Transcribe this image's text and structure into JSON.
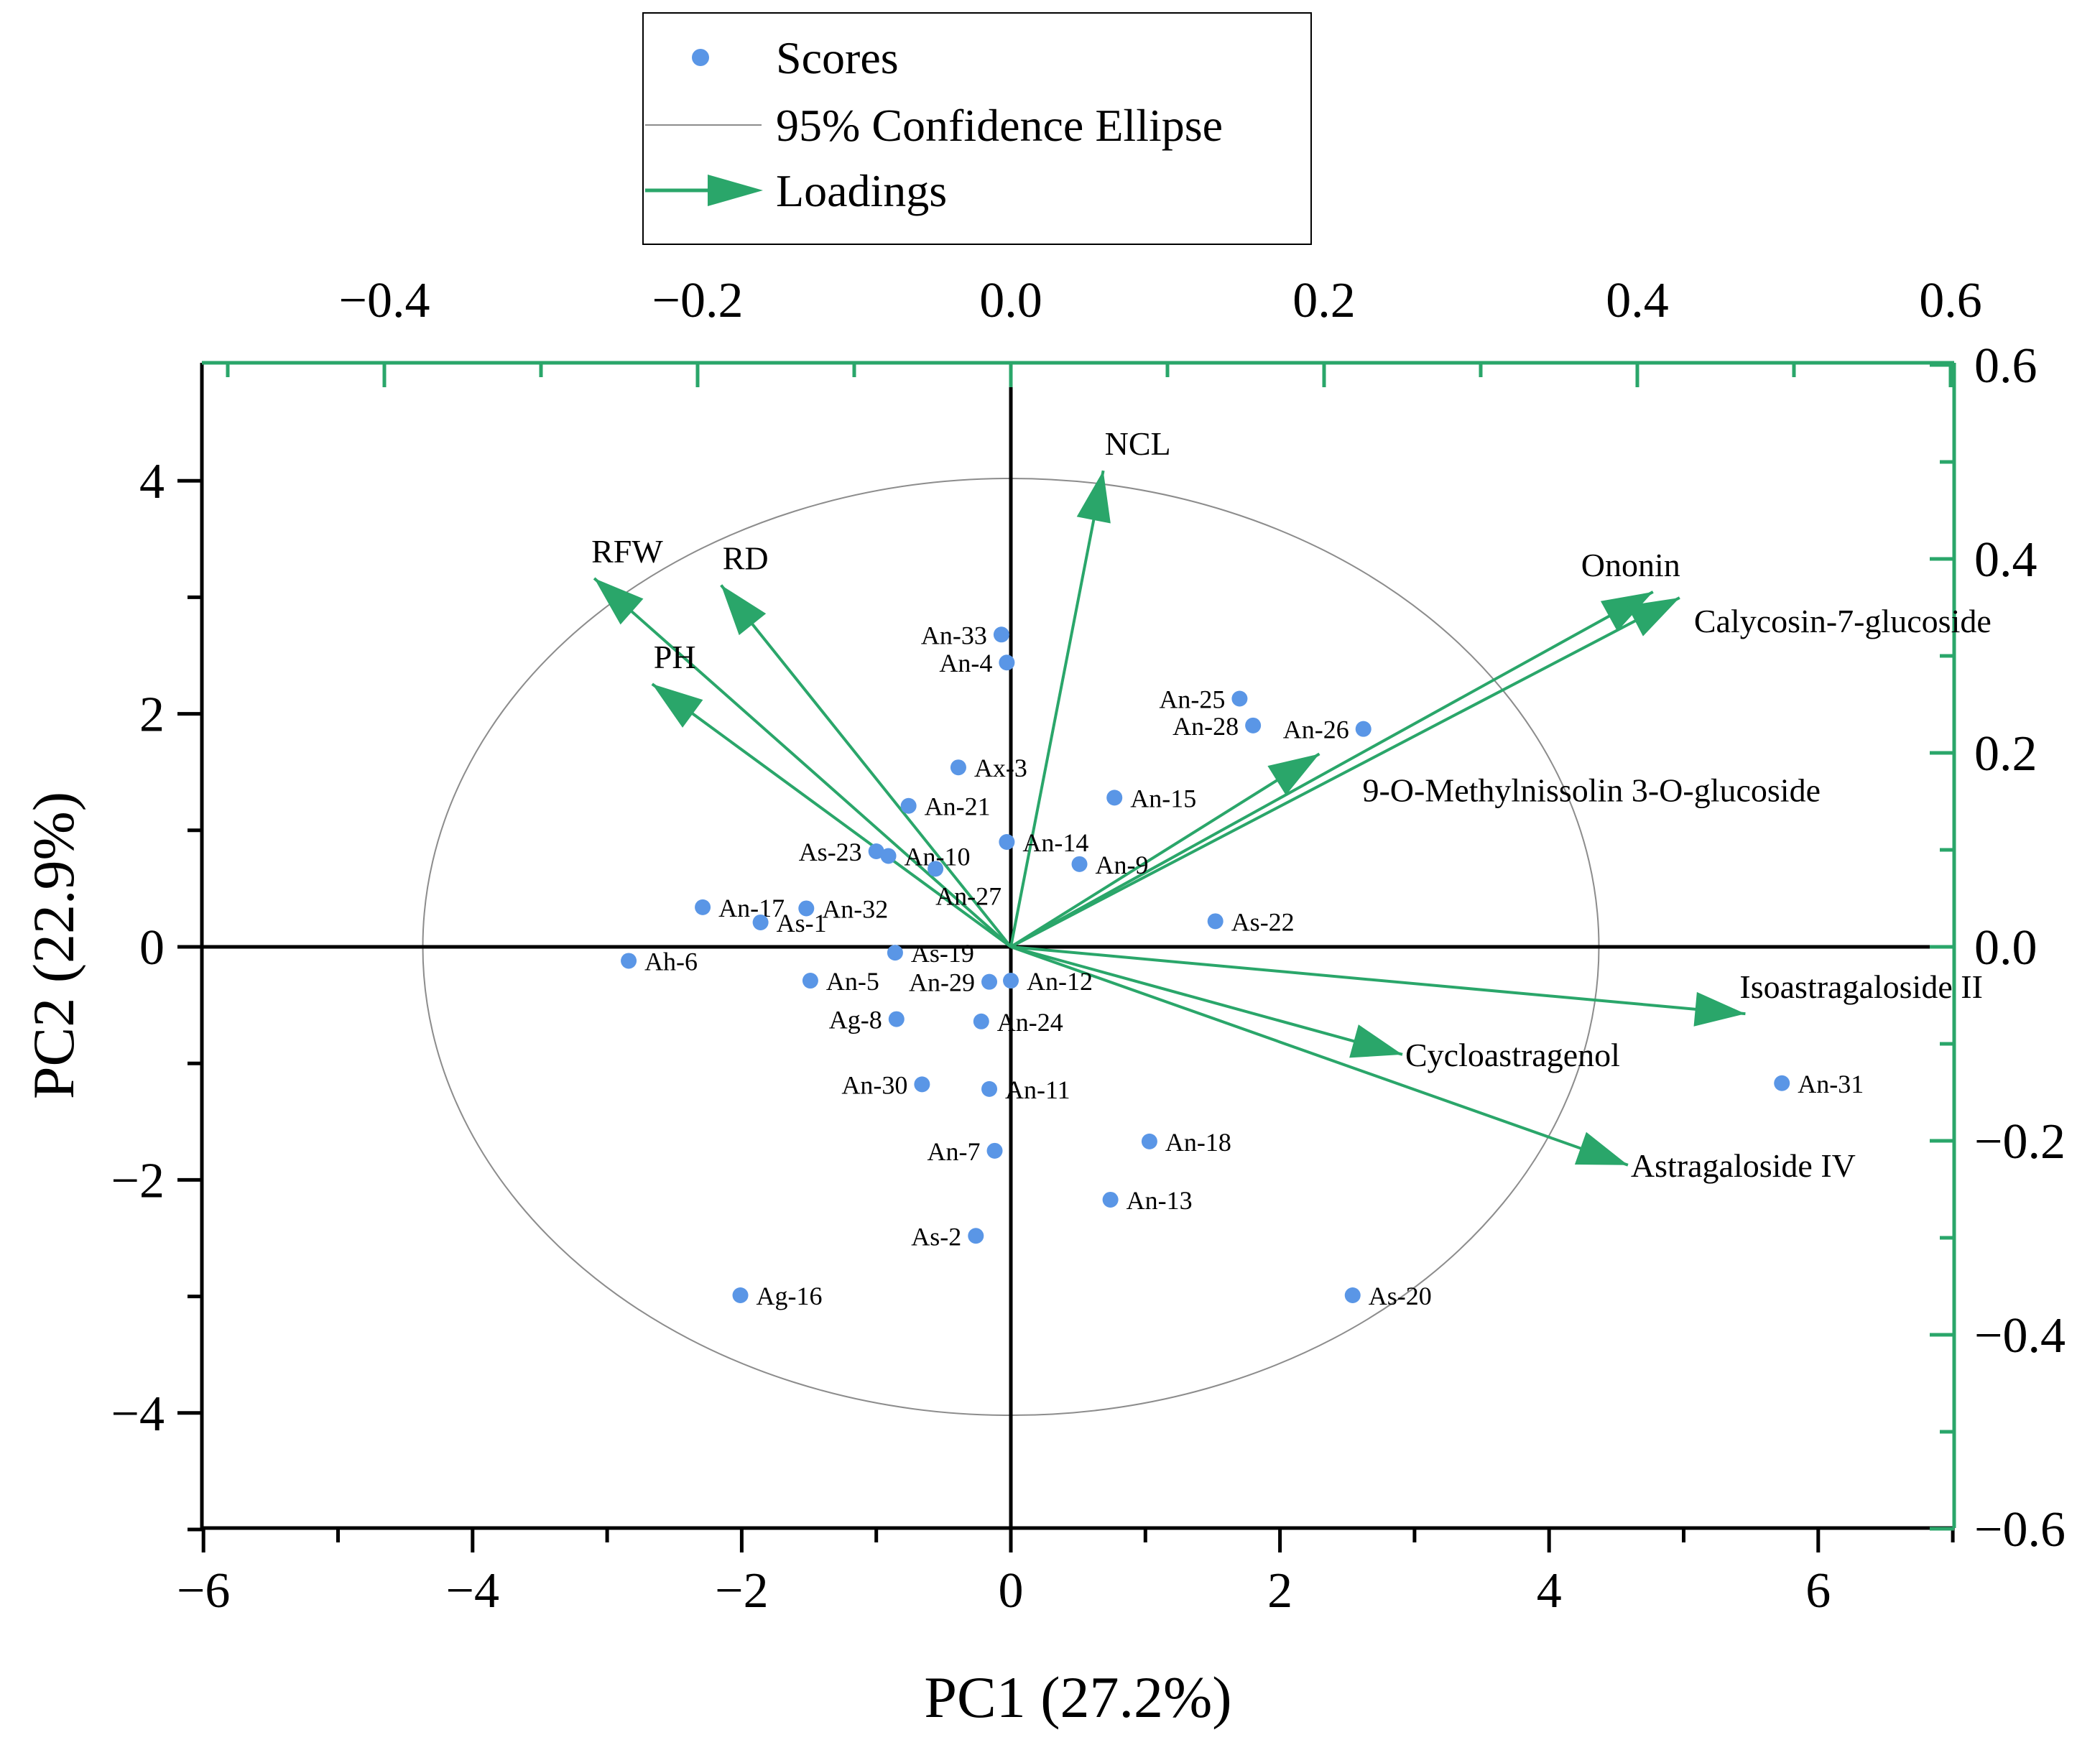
{
  "chart_data": {
    "type": "scatter",
    "subtype": "pca-biplot",
    "xlabel": "PC1 (27.2%)",
    "ylabel": "PC2 (22.9%)",
    "xlim": [
      -6,
      7
    ],
    "ylim": [
      -5,
      5
    ],
    "x_ticks": [
      -6,
      -4,
      -2,
      0,
      2,
      4,
      6
    ],
    "y_ticks": [
      -4,
      -2,
      0,
      2,
      4
    ],
    "loading_xlim": [
      -0.52,
      0.6
    ],
    "loading_ylim": [
      -0.6,
      0.6
    ],
    "loading_x_ticks": [
      -0.4,
      -0.2,
      0.0,
      0.2,
      0.4,
      0.6
    ],
    "loading_y_ticks": [
      -0.6,
      -0.4,
      -0.2,
      0.0,
      0.2,
      0.4,
      0.6
    ],
    "x_tick_labels": [
      "−6",
      "−4",
      "−2",
      "0",
      "2",
      "4",
      "6"
    ],
    "y_tick_labels": [
      "−4",
      "−2",
      "0",
      "2",
      "4"
    ],
    "loading_x_tick_labels": [
      "−0.4",
      "−0.2",
      "0.0",
      "0.2",
      "0.4",
      "0.6"
    ],
    "loading_y_tick_labels": [
      "−0.6",
      "−0.4",
      "−0.2",
      "0.0",
      "0.2",
      "0.4",
      "0.6"
    ],
    "ellipse": {
      "cx": 0.0,
      "cy": 0.0,
      "rx": 4.37,
      "ry": 4.02
    },
    "legend": {
      "placement": "top-center",
      "entries": [
        {
          "label": "Scores",
          "kind": "marker"
        },
        {
          "label": "95% Confidence Ellipse",
          "kind": "line"
        },
        {
          "label": "Loadings",
          "kind": "arrow"
        }
      ]
    },
    "colors": {
      "scores": "#5a96e6",
      "loadings": "#2aa66a",
      "ellipse": "#8c8c8c",
      "axes": "#000000",
      "secondary_axes": "#2aa66a"
    },
    "scores": [
      {
        "label": "An-33",
        "x": -0.07,
        "y": 2.68,
        "side": "left"
      },
      {
        "label": "An-4",
        "x": -0.03,
        "y": 2.44,
        "side": "left"
      },
      {
        "label": "An-25",
        "x": 1.7,
        "y": 2.13,
        "side": "left"
      },
      {
        "label": "An-28",
        "x": 1.8,
        "y": 1.9,
        "side": "left"
      },
      {
        "label": "An-26",
        "x": 2.62,
        "y": 1.87,
        "side": "left"
      },
      {
        "label": "Ax-3",
        "x": -0.39,
        "y": 1.54,
        "side": "right"
      },
      {
        "label": "An-15",
        "x": 0.77,
        "y": 1.28,
        "side": "right"
      },
      {
        "label": "An-21",
        "x": -0.76,
        "y": 1.21,
        "side": "right"
      },
      {
        "label": "As-23",
        "x": -1.0,
        "y": 0.82,
        "side": "left"
      },
      {
        "label": "An-10",
        "x": -0.91,
        "y": 0.78,
        "side": "right"
      },
      {
        "label": "An-14",
        "x": -0.03,
        "y": 0.9,
        "side": "right"
      },
      {
        "label": "An-9",
        "x": 0.51,
        "y": 0.71,
        "side": "right"
      },
      {
        "label": "An-27",
        "x": -0.56,
        "y": 0.67,
        "side": "below"
      },
      {
        "label": "An-17",
        "x": -2.29,
        "y": 0.34,
        "side": "right"
      },
      {
        "label": "An-32",
        "x": -1.52,
        "y": 0.33,
        "side": "right"
      },
      {
        "label": "As-1",
        "x": -1.86,
        "y": 0.21,
        "side": "right"
      },
      {
        "label": "As-22",
        "x": 1.52,
        "y": 0.22,
        "side": "right"
      },
      {
        "label": "Ah-6",
        "x": -2.84,
        "y": -0.12,
        "side": "right"
      },
      {
        "label": "As-19",
        "x": -0.86,
        "y": -0.05,
        "side": "right"
      },
      {
        "label": "An-5",
        "x": -1.49,
        "y": -0.29,
        "side": "right"
      },
      {
        "label": "An-12",
        "x": 0.0,
        "y": -0.29,
        "side": "right"
      },
      {
        "label": "An-29",
        "x": -0.16,
        "y": -0.3,
        "side": "left"
      },
      {
        "label": "Ag-8",
        "x": -0.85,
        "y": -0.62,
        "side": "left"
      },
      {
        "label": "An-24",
        "x": -0.22,
        "y": -0.64,
        "side": "right"
      },
      {
        "label": "An-30",
        "x": -0.66,
        "y": -1.18,
        "side": "left"
      },
      {
        "label": "An-11",
        "x": -0.16,
        "y": -1.22,
        "side": "right"
      },
      {
        "label": "An-31",
        "x": 5.73,
        "y": -1.17,
        "side": "right"
      },
      {
        "label": "An-18",
        "x": 1.03,
        "y": -1.67,
        "side": "right"
      },
      {
        "label": "An-7",
        "x": -0.12,
        "y": -1.75,
        "side": "left"
      },
      {
        "label": "An-13",
        "x": 0.74,
        "y": -2.17,
        "side": "right"
      },
      {
        "label": "As-2",
        "x": -0.26,
        "y": -2.48,
        "side": "left"
      },
      {
        "label": "Ag-16",
        "x": -2.01,
        "y": -2.99,
        "side": "right"
      },
      {
        "label": "As-20",
        "x": 2.54,
        "y": -2.99,
        "side": "right"
      }
    ],
    "loadings": [
      {
        "label": "NCL",
        "x": 0.059,
        "y": 0.491,
        "anchor": "above-right"
      },
      {
        "label": "RFW",
        "x": -0.266,
        "y": 0.38,
        "anchor": "above"
      },
      {
        "label": "RD",
        "x": -0.185,
        "y": 0.373,
        "anchor": "above-right"
      },
      {
        "label": "PH",
        "x": -0.229,
        "y": 0.271,
        "anchor": "above-right"
      },
      {
        "label": "Ononin",
        "x": 0.41,
        "y": 0.366,
        "anchor": "above-right"
      },
      {
        "label": "Calycosin-7-glucoside",
        "x": 0.427,
        "y": 0.36,
        "anchor": "right-below"
      },
      {
        "label": "9-O-Methylnissolin 3-O-glucoside",
        "x": 0.197,
        "y": 0.199,
        "anchor": "below-right"
      },
      {
        "label": "Isoastragaloside II",
        "x": 0.469,
        "y": -0.069,
        "anchor": "above-right"
      },
      {
        "label": "Cycloastragenol",
        "x": 0.25,
        "y": -0.111,
        "anchor": "right"
      },
      {
        "label": "Astragaloside IV",
        "x": 0.394,
        "y": -0.225,
        "anchor": "right"
      }
    ]
  }
}
